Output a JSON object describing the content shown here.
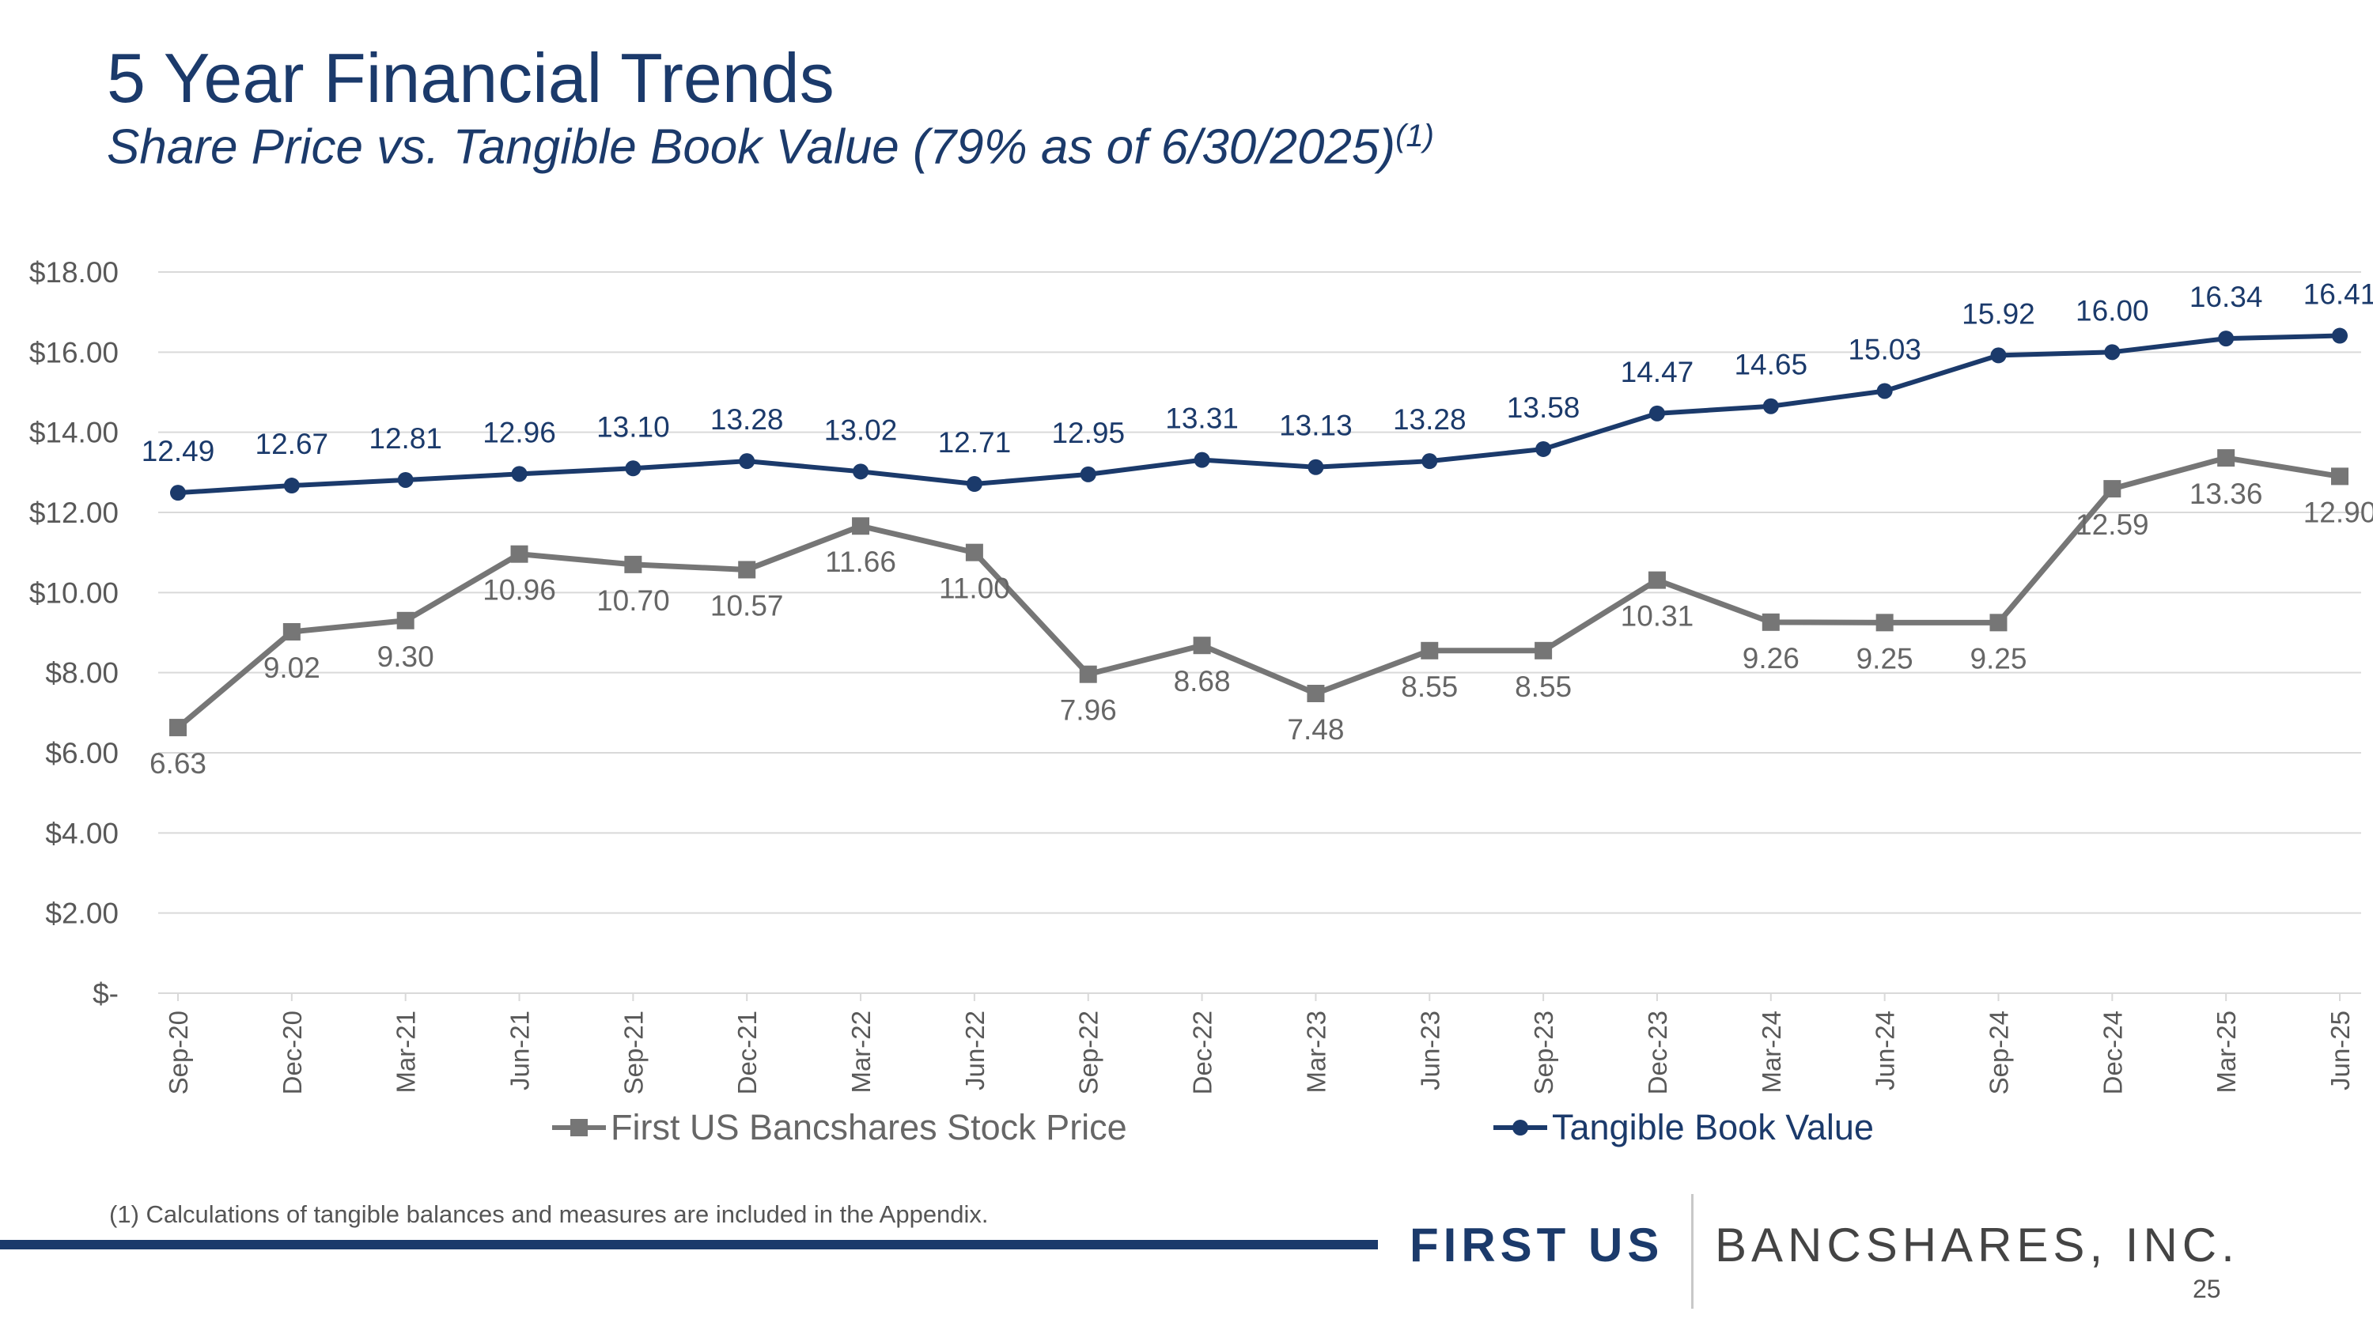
{
  "slide": {
    "title": "5 Year Financial Trends",
    "subtitle": "Share Price vs. Tangible Book Value (79% as of 6/30/2025)",
    "subtitle_superscript": "(1)",
    "footnote": "(1) Calculations of tangible balances and measures are included in the Appendix.",
    "brand_left": "FIRST US",
    "brand_right": "BANCSHARES, INC.",
    "page_number": "25"
  },
  "colors": {
    "navy": "#1b3a6b",
    "gray_series": "#767676",
    "grid": "#d9d9d9",
    "axis_text": "#595959"
  },
  "chart_data": {
    "type": "line",
    "categories": [
      "Sep-20",
      "Dec-20",
      "Mar-21",
      "Jun-21",
      "Sep-21",
      "Dec-21",
      "Mar-22",
      "Jun-22",
      "Sep-22",
      "Dec-22",
      "Mar-23",
      "Jun-23",
      "Sep-23",
      "Dec-23",
      "Mar-24",
      "Jun-24",
      "Sep-24",
      "Dec-24",
      "Mar-25",
      "Jun-25"
    ],
    "y_tick_labels": [
      "$-",
      "$2.00",
      "$4.00",
      "$6.00",
      "$8.00",
      "$10.00",
      "$12.00",
      "$14.00",
      "$16.00",
      "$18.00"
    ],
    "ylim": [
      0,
      18
    ],
    "grid": true,
    "legend_position": "bottom",
    "series": [
      {
        "name": "First US Bancshares Stock Price",
        "marker": "square",
        "color": "#767676",
        "values": [
          6.63,
          9.02,
          9.3,
          10.96,
          10.7,
          10.57,
          11.66,
          11.0,
          7.96,
          8.68,
          7.48,
          8.55,
          8.55,
          10.31,
          9.26,
          9.25,
          9.25,
          12.59,
          13.36,
          12.9
        ],
        "labels": [
          "6.63",
          "9.02",
          "9.30",
          "10.96",
          "10.70",
          "10.57",
          "11.66",
          "11.00",
          "7.96",
          "8.68",
          "7.48",
          "8.55",
          "8.55",
          "10.31",
          "9.26",
          "9.25",
          "9.25",
          "12.59",
          "13.36",
          "12.90"
        ]
      },
      {
        "name": "Tangible Book Value",
        "marker": "circle",
        "color": "#1b3a6b",
        "values": [
          12.49,
          12.67,
          12.81,
          12.96,
          13.1,
          13.28,
          13.02,
          12.71,
          12.95,
          13.31,
          13.13,
          13.28,
          13.58,
          14.47,
          14.65,
          15.03,
          15.92,
          16.0,
          16.34,
          16.41
        ],
        "labels": [
          "12.49",
          "12.67",
          "12.81",
          "12.96",
          "13.10",
          "13.28",
          "13.02",
          "12.71",
          "12.95",
          "13.31",
          "13.13",
          "13.28",
          "13.58",
          "14.47",
          "14.65",
          "15.03",
          "15.92",
          "16.00",
          "16.34",
          "16.41"
        ]
      }
    ]
  }
}
